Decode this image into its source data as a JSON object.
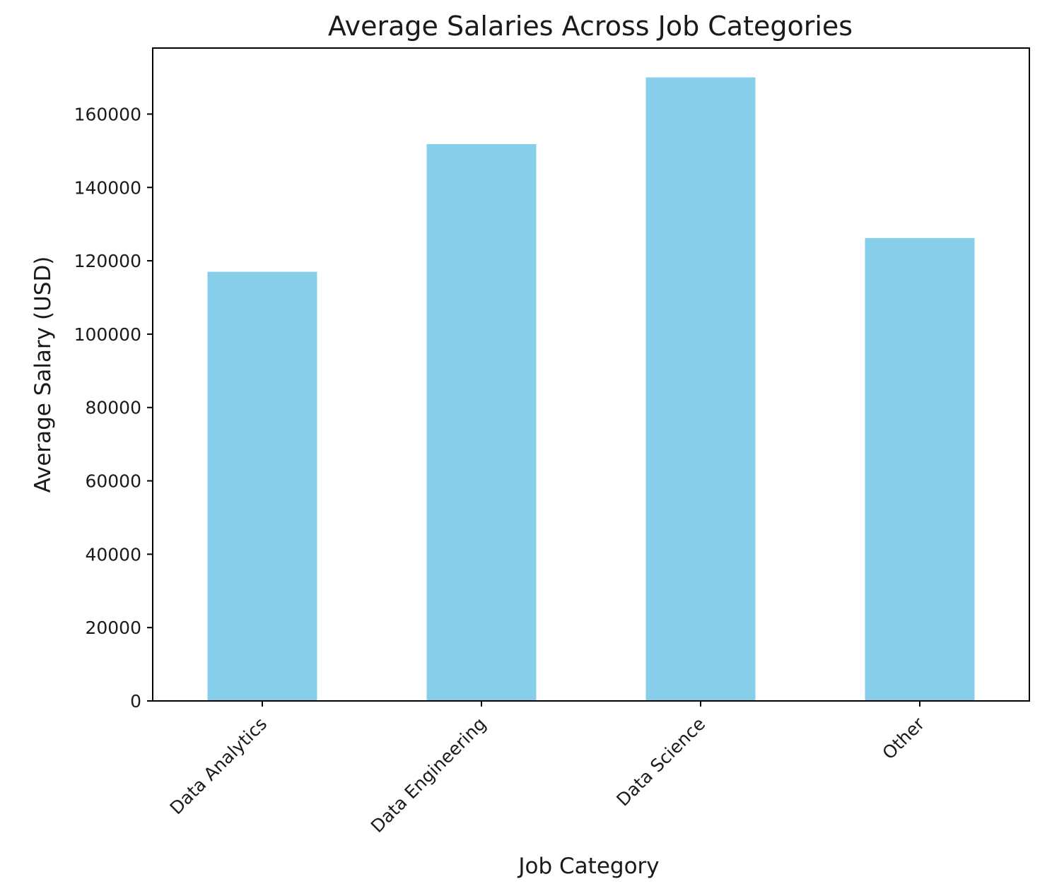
{
  "chart_data": {
    "type": "bar",
    "title": "Average Salaries Across Job Categories",
    "xlabel": "Job Category",
    "ylabel": "Average Salary (USD)",
    "categories": [
      "Data Analytics",
      "Data Engineering",
      "Data Science",
      "Other"
    ],
    "values": [
      117000,
      151800,
      170000,
      126200
    ],
    "ylim": [
      0,
      178000
    ],
    "yticks": [
      0,
      20000,
      40000,
      60000,
      80000,
      100000,
      120000,
      140000,
      160000
    ],
    "bar_color": "#87CEEB",
    "grid": false,
    "legend": "none"
  }
}
